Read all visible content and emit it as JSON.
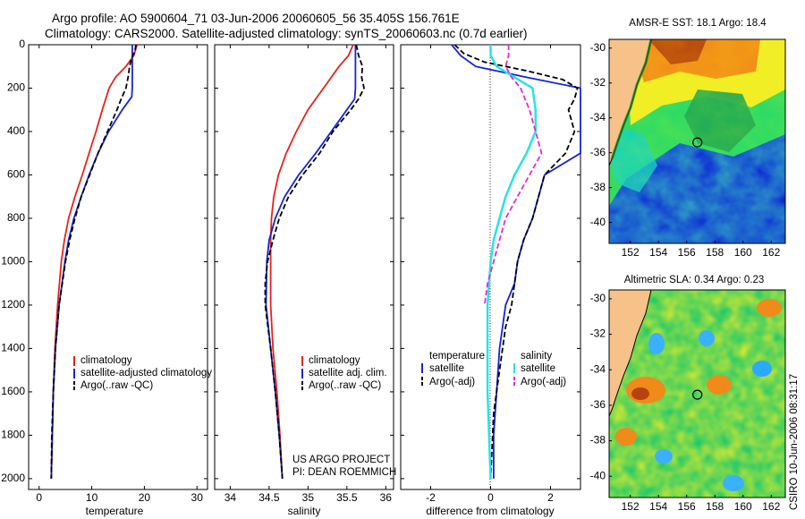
{
  "figure": {
    "title_line1": "Argo profile: AO 5900604_71 03-Jun-2006 20060605_56 35.405S 156.761E",
    "title_line2": "Climatology: CARS2000. Satellite-adjusted climatology: synTS_20060603.nc (0.7d earlier)",
    "footer_project": "US ARGO PROJECT",
    "footer_pi": "PI: DEAN ROEMMICH",
    "side_stamp": "CSIRO 10-Jun-2006 08:31:17"
  },
  "colors": {
    "climatology": "#e8231b",
    "satellite": "#1325d6",
    "argo": "#000000",
    "satellite_salinity": "#28e3e3",
    "argo_salinity": "#e02ad6",
    "land": "#f6c28a"
  },
  "depth_ticks": [
    "0",
    "200",
    "400",
    "600",
    "800",
    "1000",
    "1200",
    "1400",
    "1600",
    "1800",
    "2000"
  ],
  "chart_data": [
    {
      "type": "line",
      "name": "temperature-profile",
      "xlabel": "temperature",
      "xlim": [
        -2,
        32
      ],
      "ylim": [
        2050,
        0
      ],
      "xticks": [
        "0",
        "10",
        "20",
        "30"
      ],
      "legend": [
        "climatology",
        "satellite-adjusted climatology",
        "Argo(..raw -QC)"
      ],
      "series": [
        {
          "name": "climatology",
          "style": "solid",
          "color_key": "climatology",
          "depth": [
            0,
            50,
            100,
            150,
            200,
            300,
            400,
            500,
            600,
            700,
            800,
            900,
            1000,
            1200,
            1400,
            1600,
            1800,
            2000
          ],
          "values": [
            18.6,
            18.0,
            16.5,
            14.5,
            13.3,
            12.0,
            10.8,
            9.5,
            8.2,
            6.8,
            5.6,
            4.8,
            4.2,
            3.5,
            3.0,
            2.7,
            2.5,
            2.3
          ]
        },
        {
          "name": "satellite-adjusted climatology",
          "style": "solid",
          "color_key": "satellite",
          "depth": [
            0,
            100,
            200,
            240,
            300,
            400,
            500,
            600,
            700,
            800,
            900,
            1000,
            1200,
            1400,
            1600,
            1800,
            2000
          ],
          "values": [
            17.7,
            17.7,
            17.7,
            17.6,
            15.8,
            13.2,
            11.2,
            9.5,
            8.0,
            6.6,
            5.6,
            4.9,
            3.8,
            3.1,
            2.7,
            2.5,
            2.3
          ]
        },
        {
          "name": "Argo(..raw -QC)",
          "style": "dashed",
          "color_key": "argo",
          "depth": [
            0,
            30,
            60,
            100,
            150,
            200,
            250,
            300,
            400,
            500,
            600,
            700,
            800,
            900,
            1000,
            1200,
            1400,
            1600,
            1800,
            2000
          ],
          "values": [
            18.4,
            18.2,
            17.6,
            17.2,
            16.9,
            16.5,
            15.6,
            14.8,
            13.0,
            11.2,
            9.6,
            8.0,
            6.8,
            5.8,
            5.0,
            3.8,
            3.1,
            2.7,
            2.4,
            2.3
          ]
        }
      ]
    },
    {
      "type": "line",
      "name": "salinity-profile",
      "xlabel": "salinity",
      "xlim": [
        33.8,
        36.1
      ],
      "ylim": [
        2050,
        0
      ],
      "xticks": [
        "34",
        "34.5",
        "35",
        "35.5",
        "36"
      ],
      "legend": [
        "climatology",
        "satellite adj. clim.",
        "Argo(..raw -QC)"
      ],
      "series": [
        {
          "name": "climatology",
          "style": "solid",
          "color_key": "climatology",
          "depth": [
            0,
            50,
            100,
            200,
            300,
            400,
            500,
            600,
            700,
            800,
            900,
            1000,
            1200,
            1400,
            1600,
            1800,
            2000
          ],
          "values": [
            35.58,
            35.52,
            35.4,
            35.2,
            35.0,
            34.85,
            34.72,
            34.62,
            34.56,
            34.53,
            34.52,
            34.52,
            34.52,
            34.55,
            34.6,
            34.64,
            34.67
          ]
        },
        {
          "name": "satellite adj. clim.",
          "style": "solid",
          "color_key": "satellite",
          "depth": [
            0,
            100,
            200,
            250,
            300,
            400,
            500,
            600,
            700,
            800,
            900,
            1000,
            1200,
            1400,
            1600,
            1800,
            2000
          ],
          "values": [
            35.61,
            35.61,
            35.61,
            35.6,
            35.5,
            35.3,
            35.1,
            34.88,
            34.7,
            34.58,
            34.5,
            34.47,
            34.46,
            34.52,
            34.58,
            34.63,
            34.67
          ]
        },
        {
          "name": "Argo(..raw -QC)",
          "style": "dashed",
          "color_key": "argo",
          "depth": [
            0,
            50,
            100,
            150,
            200,
            250,
            300,
            400,
            500,
            600,
            700,
            800,
            900,
            1000,
            1100,
            1200,
            1400,
            1600,
            1800,
            2000
          ],
          "values": [
            35.62,
            35.65,
            35.7,
            35.69,
            35.72,
            35.65,
            35.55,
            35.32,
            35.15,
            34.93,
            34.75,
            34.63,
            34.55,
            34.48,
            34.45,
            34.45,
            34.52,
            34.58,
            34.63,
            34.67
          ]
        }
      ]
    },
    {
      "type": "line",
      "name": "difference-profile",
      "xlabel": "difference from climatology",
      "xlim": [
        -3.0,
        3.0
      ],
      "ylim": [
        2050,
        0
      ],
      "xticks": [
        "-2",
        "0",
        "2"
      ],
      "legend_titles": [
        "temperature",
        "salinity"
      ],
      "legend": [
        "satellite",
        "Argo(-adj)",
        "satellite",
        "Argo(-adj)"
      ],
      "series": [
        {
          "name": "temperature satellite",
          "style": "solid",
          "color_key": "satellite",
          "depth": [
            0,
            50,
            100,
            150,
            200,
            250,
            300,
            400,
            500,
            600,
            700,
            800,
            900,
            1000,
            1100,
            1200,
            1400,
            1600,
            1800,
            2000
          ],
          "values": [
            -1.3,
            -1.0,
            -0.5,
            1.2,
            3.0,
            3.0,
            3.0,
            3.0,
            3.0,
            1.8,
            1.6,
            1.4,
            1.1,
            0.9,
            0.8,
            0.5,
            0.3,
            0.2,
            0.1,
            0.1
          ]
        },
        {
          "name": "temperature Argo(-adj)",
          "style": "dashed",
          "color_key": "argo",
          "depth": [
            0,
            40,
            80,
            120,
            160,
            200,
            250,
            300,
            400,
            500,
            600,
            700,
            800,
            900,
            1000,
            1100,
            1200,
            1300,
            1500,
            1700,
            2000
          ],
          "values": [
            -1.2,
            -0.9,
            -0.2,
            1.2,
            2.4,
            2.9,
            2.8,
            2.6,
            2.8,
            2.5,
            1.8,
            1.6,
            1.4,
            1.1,
            0.9,
            0.8,
            0.7,
            0.5,
            0.3,
            0.1,
            0.0
          ]
        },
        {
          "name": "salinity satellite",
          "style": "solid",
          "color_key": "satellite_salinity",
          "depth": [
            0,
            50,
            100,
            150,
            200,
            300,
            400,
            500,
            600,
            700,
            800,
            900,
            1000,
            1200,
            1400,
            1600,
            1800,
            2000
          ],
          "values": [
            0.0,
            0.0,
            0.2,
            0.8,
            1.4,
            1.5,
            1.5,
            1.2,
            0.8,
            0.5,
            0.3,
            0.1,
            0.0,
            -0.1,
            -0.1,
            -0.1,
            -0.05,
            0.0
          ]
        },
        {
          "name": "salinity Argo(-adj)",
          "style": "dashed",
          "color_key": "argo_salinity",
          "depth": [
            0,
            50,
            100,
            150,
            200,
            300,
            400,
            500,
            600,
            700,
            800,
            900,
            1000,
            1100,
            1200
          ],
          "values": [
            0.6,
            0.6,
            0.5,
            0.7,
            1.0,
            1.3,
            1.5,
            1.7,
            1.3,
            0.9,
            0.5,
            0.3,
            0.1,
            -0.1,
            -0.2
          ]
        }
      ]
    },
    {
      "type": "heatmap",
      "name": "sst-map",
      "title": "AMSR-E SST: 18.1 Argo: 18.4",
      "xticks": [
        "152",
        "154",
        "156",
        "158",
        "160",
        "162"
      ],
      "yticks": [
        "-30",
        "-32",
        "-34",
        "-36",
        "-38",
        "-40"
      ],
      "xlim": [
        150.5,
        163.0
      ],
      "ylim": [
        -41.2,
        -29.5
      ],
      "marker": {
        "lon": 156.761,
        "lat": -35.405
      },
      "colormap": "jet"
    },
    {
      "type": "heatmap",
      "name": "sla-map",
      "title": "Altimetric SLA: 0.34 Argo: 0.23",
      "xticks": [
        "152",
        "154",
        "156",
        "158",
        "160",
        "162"
      ],
      "yticks": [
        "-30",
        "-32",
        "-34",
        "-36",
        "-38",
        "-40"
      ],
      "xlim": [
        150.5,
        163.0
      ],
      "ylim": [
        -41.2,
        -29.5
      ],
      "marker": {
        "lon": 156.761,
        "lat": -35.405
      },
      "colormap": "jet"
    }
  ]
}
